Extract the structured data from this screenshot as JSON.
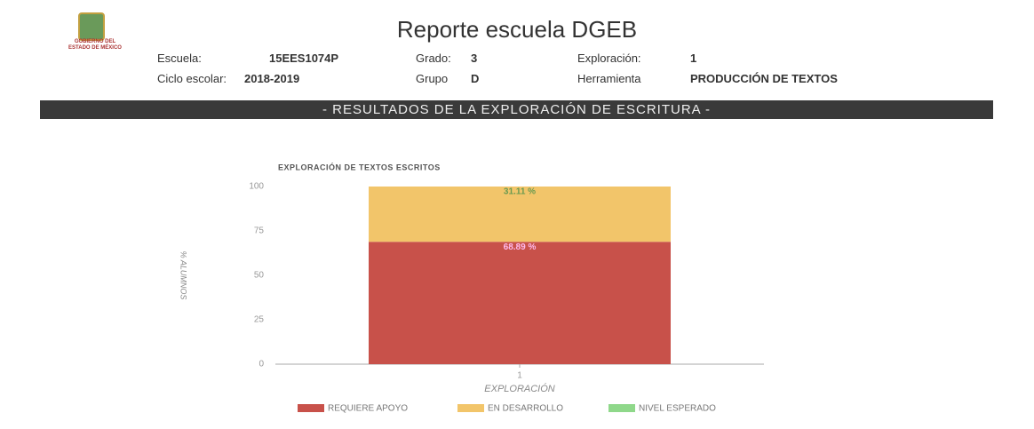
{
  "header": {
    "logo": [
      "GOBIERNO DEL",
      "ESTADO DE MÉXICO"
    ],
    "title": "Reporte escuela DGEB",
    "fields": [
      {
        "label": "Escuela:",
        "value": "15EES1074P"
      },
      {
        "label": "Grado:",
        "value": "3"
      },
      {
        "label": "Exploración:",
        "value": "1"
      },
      {
        "label": "Ciclo escolar:",
        "value": "2018-2019"
      },
      {
        "label": "Grupo",
        "value": "D"
      },
      {
        "label": "Herramienta",
        "value": "PRODUCCIÓN DE TEXTOS"
      }
    ],
    "banner": "- RESULTADOS DE LA EXPLORACIÓN DE ESCRITURA -"
  },
  "chart_data": {
    "type": "stacked_bar",
    "title": "EXPLORACIÓN DE TEXTOS ESCRITOS",
    "categories": [
      "1"
    ],
    "series": [
      {
        "name": "REQUIERE APOYO",
        "color": "#c8514a",
        "values": [
          68.89
        ],
        "value_labels": [
          "68.89 %"
        ]
      },
      {
        "name": "EN DESARROLLO",
        "color": "#f2c56a",
        "values": [
          31.11
        ],
        "value_labels": [
          "31.11 %"
        ]
      },
      {
        "name": "NIVEL ESPERADO",
        "color": "#8fd88a",
        "values": [
          0
        ]
      }
    ],
    "ylim": [
      0,
      100
    ],
    "yticks": [
      0,
      25,
      50,
      75,
      100
    ],
    "xlabel": "EXPLORACIÓN",
    "ylabel": "% ALUMNOS",
    "legend": "bottom"
  }
}
